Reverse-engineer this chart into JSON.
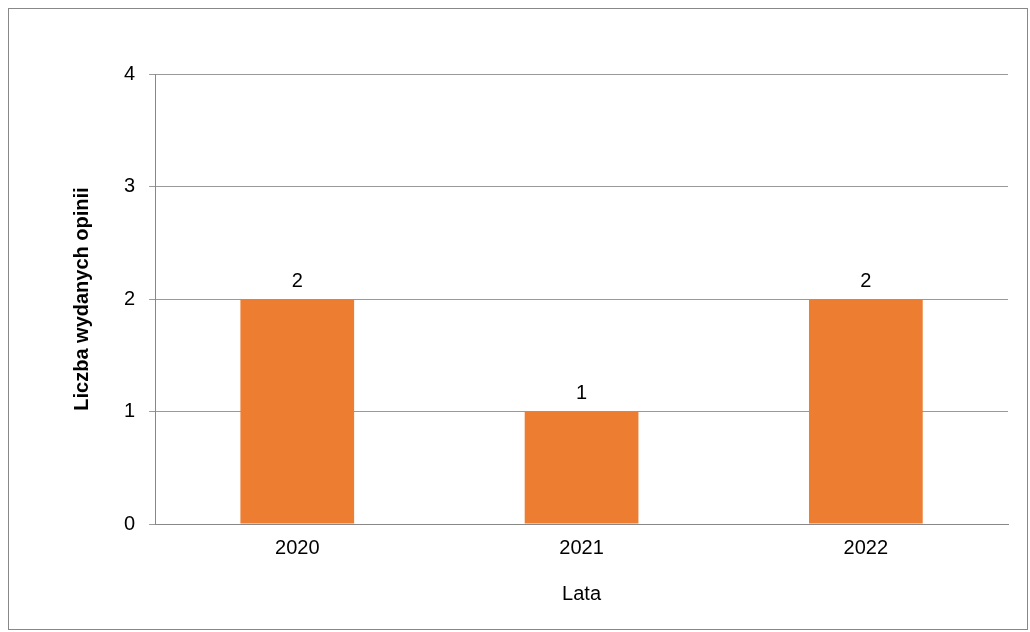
{
  "chart_data": {
    "type": "bar",
    "xlabel": "Lata",
    "ylabel": "Liczba wydanych opinii",
    "categories": [
      "2020",
      "2021",
      "2022"
    ],
    "values": [
      2,
      1,
      2
    ],
    "color": "#ed7d31",
    "ylim": [
      0,
      4
    ],
    "yticks": [
      0,
      1,
      2,
      3,
      4
    ],
    "grid": "y",
    "legend": false,
    "data_labels": true
  }
}
